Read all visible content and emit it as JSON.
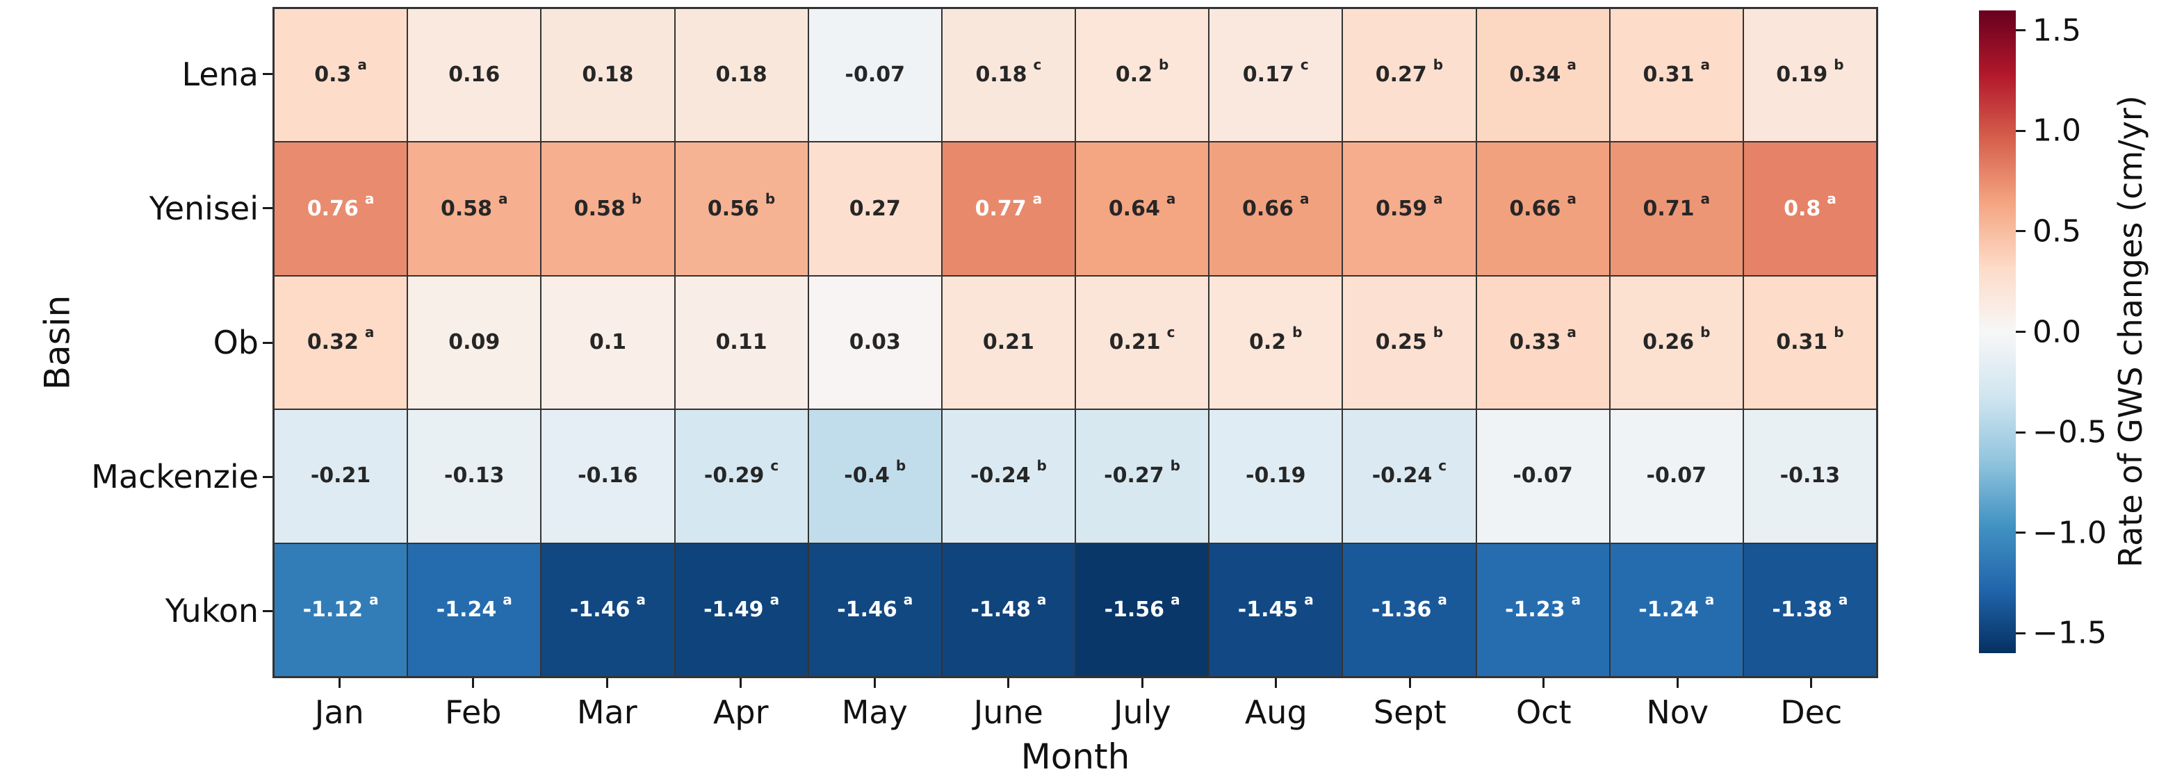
{
  "chart_data": {
    "type": "heatmap",
    "xlabel": "Month",
    "ylabel": "Basin",
    "x_categories": [
      "Jan",
      "Feb",
      "Mar",
      "Apr",
      "May",
      "June",
      "July",
      "Aug",
      "Sept",
      "Oct",
      "Nov",
      "Dec"
    ],
    "y_categories": [
      "Lena",
      "Yenisei",
      "Ob",
      "Mackenzie",
      "Yukon"
    ],
    "series": [
      {
        "name": "Lena",
        "values": [
          0.3,
          0.16,
          0.18,
          0.18,
          -0.07,
          0.18,
          0.2,
          0.17,
          0.27,
          0.34,
          0.31,
          0.19
        ],
        "superscripts": [
          "a",
          "",
          "",
          "",
          "",
          "c",
          "b",
          "c",
          "b",
          "a",
          "a",
          "b"
        ]
      },
      {
        "name": "Yenisei",
        "values": [
          0.76,
          0.58,
          0.58,
          0.56,
          0.27,
          0.77,
          0.64,
          0.66,
          0.59,
          0.66,
          0.71,
          0.8
        ],
        "superscripts": [
          "a",
          "a",
          "b",
          "b",
          "",
          "a",
          "a",
          "a",
          "a",
          "a",
          "a",
          "a"
        ]
      },
      {
        "name": "Ob",
        "values": [
          0.32,
          0.09,
          0.1,
          0.11,
          0.03,
          0.21,
          0.21,
          0.2,
          0.25,
          0.33,
          0.26,
          0.31
        ],
        "superscripts": [
          "a",
          "",
          "",
          "",
          "",
          "",
          "c",
          "b",
          "b",
          "a",
          "b",
          "b"
        ]
      },
      {
        "name": "Mackenzie",
        "values": [
          -0.21,
          -0.13,
          -0.16,
          -0.29,
          -0.4,
          -0.24,
          -0.27,
          -0.19,
          -0.24,
          -0.07,
          -0.07,
          -0.13
        ],
        "superscripts": [
          "",
          "",
          "",
          "c",
          "b",
          "b",
          "b",
          "",
          "c",
          "",
          "",
          ""
        ]
      },
      {
        "name": "Yukon",
        "values": [
          -1.12,
          -1.24,
          -1.46,
          -1.49,
          -1.46,
          -1.48,
          -1.56,
          -1.45,
          -1.36,
          -1.23,
          -1.24,
          -1.38
        ],
        "superscripts": [
          "a",
          "a",
          "a",
          "a",
          "a",
          "a",
          "a",
          "a",
          "a",
          "a",
          "a",
          "a"
        ]
      }
    ],
    "colorbar": {
      "label": "Rate of GWS changes (cm/yr)",
      "tick_labels": [
        "1.5",
        "1.0",
        "0.5",
        "0.0",
        "−0.5",
        "−1.0",
        "−1.5"
      ],
      "tick_values": [
        1.5,
        1.0,
        0.5,
        0.0,
        -0.5,
        -1.0,
        -1.5
      ],
      "vmin": -1.6,
      "vmax": 1.6,
      "colormap": "RdBu_r",
      "stops_low_to_high": [
        "#053061",
        "#2166ac",
        "#4393c3",
        "#92c5de",
        "#d1e5f0",
        "#f7f7f7",
        "#fddbc7",
        "#f4a582",
        "#d6604d",
        "#b2182b",
        "#67001f"
      ]
    },
    "style": {
      "gridline_color": "#333333",
      "annotation_dark_text": "#262626",
      "annotation_light_text": "#ffffff"
    }
  }
}
